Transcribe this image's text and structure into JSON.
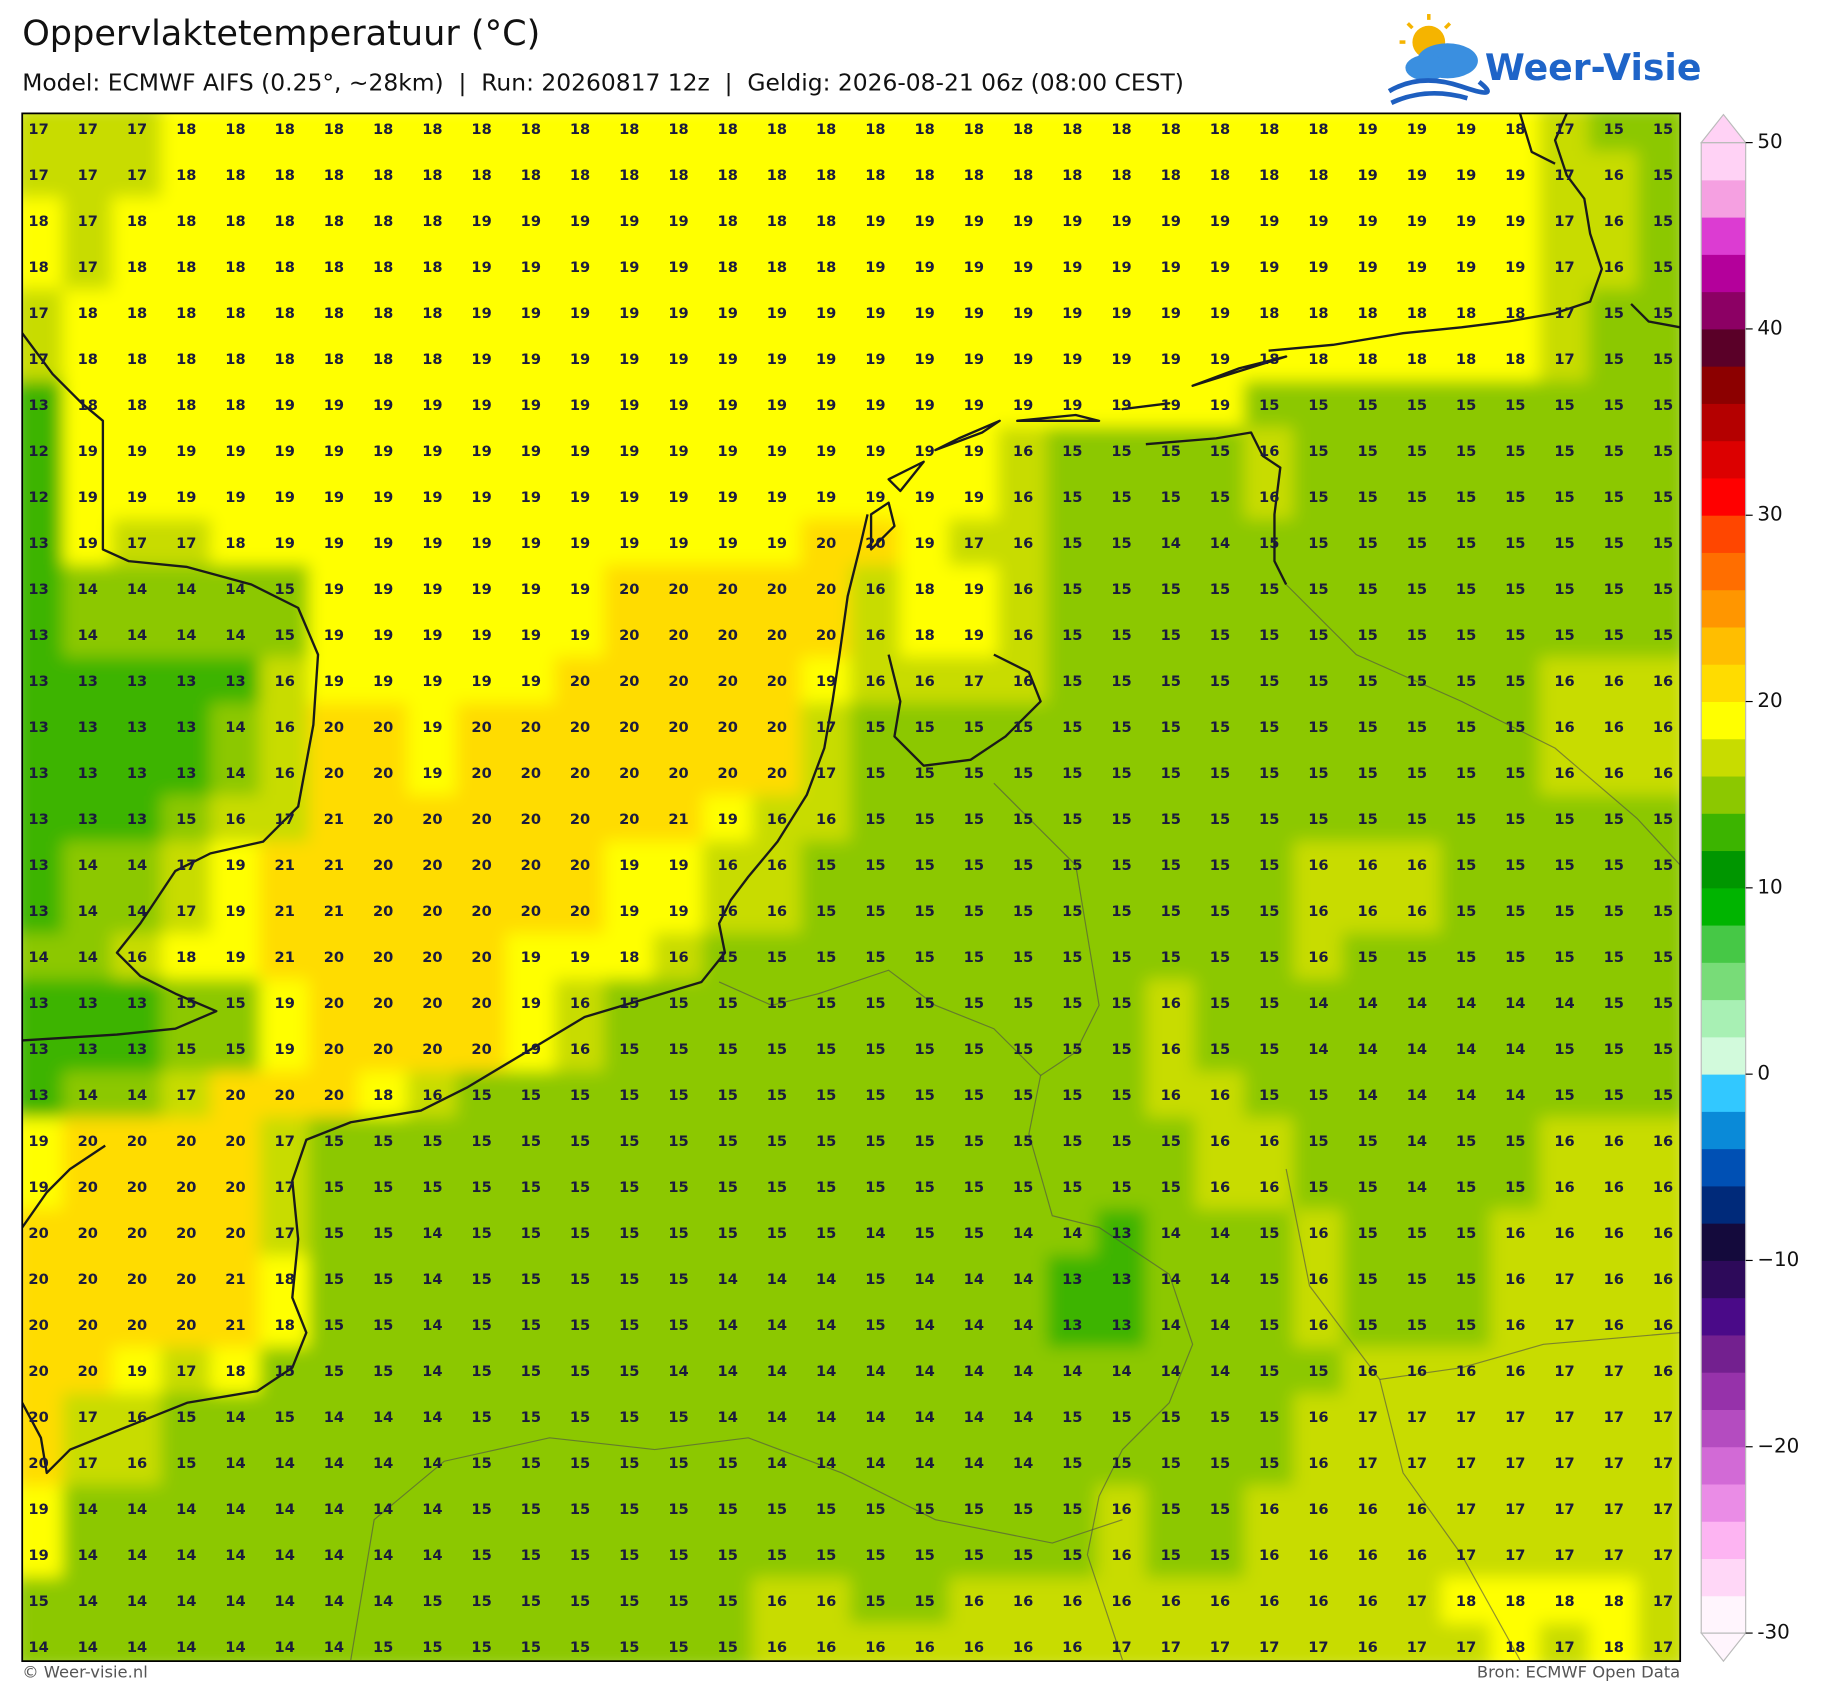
{
  "header": {
    "title": "Oppervlaktetemperatuur (°C)",
    "subtitle": "Model: ECMWF AIFS (0.25°, ~28km)  |  Run: 20260817 12z  |  Geldig: 2026-08-21 06z (08:00 CEST)",
    "logo": "Weer-Visie"
  },
  "chart_data": {
    "type": "grid",
    "values": [
      [
        17,
        17,
        17,
        18,
        18,
        18,
        18,
        18,
        18,
        18,
        18,
        18,
        18,
        18,
        18,
        18,
        18,
        18,
        18,
        18,
        18,
        18,
        18,
        18,
        18,
        18,
        18,
        19,
        19,
        19,
        18,
        17,
        15,
        15
      ],
      [
        17,
        17,
        17,
        18,
        18,
        18,
        18,
        18,
        18,
        18,
        18,
        18,
        18,
        18,
        18,
        18,
        18,
        18,
        18,
        18,
        18,
        18,
        18,
        18,
        18,
        18,
        18,
        19,
        19,
        19,
        19,
        17,
        16,
        15
      ],
      [
        18,
        17,
        18,
        18,
        18,
        18,
        18,
        18,
        18,
        19,
        19,
        19,
        19,
        19,
        18,
        18,
        18,
        19,
        19,
        19,
        19,
        19,
        19,
        19,
        19,
        19,
        19,
        19,
        19,
        19,
        19,
        17,
        16,
        15
      ],
      [
        18,
        17,
        18,
        18,
        18,
        18,
        18,
        18,
        18,
        19,
        19,
        19,
        19,
        19,
        18,
        18,
        18,
        19,
        19,
        19,
        19,
        19,
        19,
        19,
        19,
        19,
        19,
        19,
        19,
        19,
        19,
        17,
        16,
        15
      ],
      [
        17,
        18,
        18,
        18,
        18,
        18,
        18,
        18,
        18,
        19,
        19,
        19,
        19,
        19,
        19,
        19,
        19,
        19,
        19,
        19,
        19,
        19,
        19,
        19,
        19,
        18,
        18,
        18,
        18,
        18,
        18,
        17,
        15,
        15
      ],
      [
        17,
        18,
        18,
        18,
        18,
        18,
        18,
        18,
        18,
        19,
        19,
        19,
        19,
        19,
        19,
        19,
        19,
        19,
        19,
        19,
        19,
        19,
        19,
        19,
        19,
        18,
        18,
        18,
        18,
        18,
        18,
        17,
        15,
        15
      ],
      [
        13,
        18,
        18,
        18,
        18,
        19,
        19,
        19,
        19,
        19,
        19,
        19,
        19,
        19,
        19,
        19,
        19,
        19,
        19,
        19,
        19,
        19,
        19,
        19,
        19,
        15,
        15,
        15,
        15,
        15,
        15,
        15,
        15,
        15
      ],
      [
        12,
        19,
        19,
        19,
        19,
        19,
        19,
        19,
        19,
        19,
        19,
        19,
        19,
        19,
        19,
        19,
        19,
        19,
        19,
        19,
        16,
        15,
        15,
        15,
        15,
        16,
        15,
        15,
        15,
        15,
        15,
        15,
        15,
        15
      ],
      [
        12,
        19,
        19,
        19,
        19,
        19,
        19,
        19,
        19,
        19,
        19,
        19,
        19,
        19,
        19,
        19,
        19,
        19,
        19,
        19,
        16,
        15,
        15,
        15,
        15,
        16,
        15,
        15,
        15,
        15,
        15,
        15,
        15,
        15
      ],
      [
        13,
        19,
        17,
        17,
        18,
        19,
        19,
        19,
        19,
        19,
        19,
        19,
        19,
        19,
        19,
        19,
        20,
        20,
        19,
        17,
        16,
        15,
        15,
        14,
        14,
        15,
        15,
        15,
        15,
        15,
        15,
        15,
        15,
        15
      ],
      [
        13,
        14,
        14,
        14,
        14,
        15,
        19,
        19,
        19,
        19,
        19,
        19,
        20,
        20,
        20,
        20,
        20,
        16,
        18,
        19,
        16,
        15,
        15,
        15,
        15,
        15,
        15,
        15,
        15,
        15,
        15,
        15,
        15,
        15
      ],
      [
        13,
        14,
        14,
        14,
        14,
        15,
        19,
        19,
        19,
        19,
        19,
        19,
        20,
        20,
        20,
        20,
        20,
        16,
        18,
        19,
        16,
        15,
        15,
        15,
        15,
        15,
        15,
        15,
        15,
        15,
        15,
        15,
        15,
        15
      ],
      [
        13,
        13,
        13,
        13,
        13,
        16,
        19,
        19,
        19,
        19,
        19,
        20,
        20,
        20,
        20,
        20,
        19,
        16,
        16,
        17,
        16,
        15,
        15,
        15,
        15,
        15,
        15,
        15,
        15,
        15,
        15,
        16,
        16,
        16
      ],
      [
        13,
        13,
        13,
        13,
        14,
        16,
        20,
        20,
        19,
        20,
        20,
        20,
        20,
        20,
        20,
        20,
        17,
        15,
        15,
        15,
        15,
        15,
        15,
        15,
        15,
        15,
        15,
        15,
        15,
        15,
        15,
        16,
        16,
        16
      ],
      [
        13,
        13,
        13,
        13,
        14,
        16,
        20,
        20,
        19,
        20,
        20,
        20,
        20,
        20,
        20,
        20,
        17,
        15,
        15,
        15,
        15,
        15,
        15,
        15,
        15,
        15,
        15,
        15,
        15,
        15,
        15,
        16,
        16,
        16
      ],
      [
        13,
        13,
        13,
        15,
        16,
        17,
        21,
        20,
        20,
        20,
        20,
        20,
        20,
        21,
        19,
        16,
        16,
        15,
        15,
        15,
        15,
        15,
        15,
        15,
        15,
        15,
        15,
        15,
        15,
        15,
        15,
        15,
        15,
        15
      ],
      [
        13,
        14,
        14,
        17,
        19,
        21,
        21,
        20,
        20,
        20,
        20,
        20,
        19,
        19,
        16,
        16,
        15,
        15,
        15,
        15,
        15,
        15,
        15,
        15,
        15,
        15,
        16,
        16,
        16,
        15,
        15,
        15,
        15,
        15
      ],
      [
        13,
        14,
        14,
        17,
        19,
        21,
        21,
        20,
        20,
        20,
        20,
        20,
        19,
        19,
        16,
        16,
        15,
        15,
        15,
        15,
        15,
        15,
        15,
        15,
        15,
        15,
        16,
        16,
        16,
        15,
        15,
        15,
        15,
        15
      ],
      [
        14,
        14,
        16,
        18,
        19,
        21,
        20,
        20,
        20,
        20,
        19,
        19,
        18,
        16,
        15,
        15,
        15,
        15,
        15,
        15,
        15,
        15,
        15,
        15,
        15,
        15,
        16,
        15,
        15,
        15,
        15,
        15,
        15,
        15
      ],
      [
        13,
        13,
        13,
        15,
        15,
        19,
        20,
        20,
        20,
        20,
        19,
        16,
        15,
        15,
        15,
        15,
        15,
        15,
        15,
        15,
        15,
        15,
        15,
        16,
        15,
        15,
        14,
        14,
        14,
        14,
        14,
        14,
        15,
        15
      ],
      [
        13,
        13,
        13,
        15,
        15,
        19,
        20,
        20,
        20,
        20,
        19,
        16,
        15,
        15,
        15,
        15,
        15,
        15,
        15,
        15,
        15,
        15,
        15,
        16,
        15,
        15,
        14,
        14,
        14,
        14,
        14,
        15,
        15,
        15
      ],
      [
        13,
        14,
        14,
        17,
        20,
        20,
        20,
        18,
        16,
        15,
        15,
        15,
        15,
        15,
        15,
        15,
        15,
        15,
        15,
        15,
        15,
        15,
        15,
        16,
        16,
        15,
        15,
        14,
        14,
        14,
        14,
        15,
        15,
        15
      ],
      [
        19,
        20,
        20,
        20,
        20,
        17,
        15,
        15,
        15,
        15,
        15,
        15,
        15,
        15,
        15,
        15,
        15,
        15,
        15,
        15,
        15,
        15,
        15,
        15,
        16,
        16,
        15,
        15,
        14,
        15,
        15,
        16,
        16,
        16
      ],
      [
        19,
        20,
        20,
        20,
        20,
        17,
        15,
        15,
        15,
        15,
        15,
        15,
        15,
        15,
        15,
        15,
        15,
        15,
        15,
        15,
        15,
        15,
        15,
        15,
        16,
        16,
        15,
        15,
        14,
        15,
        15,
        16,
        16,
        16
      ],
      [
        20,
        20,
        20,
        20,
        20,
        17,
        15,
        15,
        14,
        15,
        15,
        15,
        15,
        15,
        15,
        15,
        15,
        14,
        15,
        15,
        14,
        14,
        13,
        14,
        14,
        15,
        16,
        15,
        15,
        15,
        16,
        16,
        16,
        16
      ],
      [
        20,
        20,
        20,
        20,
        21,
        18,
        15,
        15,
        14,
        15,
        15,
        15,
        15,
        15,
        14,
        14,
        14,
        15,
        14,
        14,
        14,
        13,
        13,
        14,
        14,
        15,
        16,
        15,
        15,
        15,
        16,
        17,
        16,
        16
      ],
      [
        20,
        20,
        20,
        20,
        21,
        18,
        15,
        15,
        14,
        15,
        15,
        15,
        15,
        15,
        14,
        14,
        14,
        15,
        14,
        14,
        14,
        13,
        13,
        14,
        14,
        15,
        16,
        15,
        15,
        15,
        16,
        17,
        16,
        16
      ],
      [
        20,
        20,
        19,
        17,
        18,
        15,
        15,
        15,
        14,
        15,
        15,
        15,
        15,
        14,
        14,
        14,
        14,
        14,
        14,
        14,
        14,
        14,
        14,
        14,
        14,
        15,
        15,
        16,
        16,
        16,
        16,
        17,
        17,
        16
      ],
      [
        20,
        17,
        16,
        15,
        14,
        15,
        14,
        14,
        14,
        15,
        15,
        15,
        15,
        15,
        14,
        14,
        14,
        14,
        14,
        14,
        14,
        15,
        15,
        15,
        15,
        15,
        16,
        17,
        17,
        17,
        17,
        17,
        17,
        17
      ],
      [
        20,
        17,
        16,
        15,
        14,
        14,
        14,
        14,
        14,
        15,
        15,
        15,
        15,
        15,
        15,
        14,
        14,
        14,
        14,
        14,
        14,
        15,
        15,
        15,
        15,
        15,
        16,
        17,
        17,
        17,
        17,
        17,
        17,
        17
      ],
      [
        19,
        14,
        14,
        14,
        14,
        14,
        14,
        14,
        14,
        15,
        15,
        15,
        15,
        15,
        15,
        15,
        15,
        15,
        15,
        15,
        15,
        15,
        16,
        15,
        15,
        16,
        16,
        16,
        16,
        17,
        17,
        17,
        17,
        17
      ],
      [
        19,
        14,
        14,
        14,
        14,
        14,
        14,
        14,
        14,
        15,
        15,
        15,
        15,
        15,
        15,
        15,
        15,
        15,
        15,
        15,
        15,
        15,
        16,
        15,
        15,
        16,
        16,
        16,
        16,
        17,
        17,
        17,
        17,
        17
      ],
      [
        15,
        14,
        14,
        14,
        14,
        14,
        14,
        14,
        15,
        15,
        15,
        15,
        15,
        15,
        15,
        16,
        16,
        15,
        15,
        16,
        16,
        16,
        16,
        16,
        16,
        16,
        16,
        16,
        17,
        18,
        18,
        18,
        18,
        17
      ],
      [
        14,
        14,
        14,
        14,
        14,
        14,
        14,
        15,
        15,
        15,
        15,
        15,
        15,
        15,
        15,
        16,
        16,
        16,
        16,
        16,
        16,
        16,
        17,
        17,
        17,
        17,
        17,
        16,
        17,
        17,
        18,
        17,
        18,
        17
      ]
    ],
    "colorbar": {
      "lim": [
        -30,
        50
      ],
      "ticks": [
        -30,
        {
          "value": -20,
          "label": "−20"
        },
        {
          "value": -10,
          "label": "−10"
        },
        0,
        10,
        20,
        30,
        40,
        50
      ],
      "colors": [
        "#fff5fd",
        "#ffd7f7",
        "#fdb4f2",
        "#ea8ce6",
        "#d26ad6",
        "#b44cc0",
        "#9632aa",
        "#73208f",
        "#4a0a88",
        "#2d0a5a",
        "#140a3c",
        "#002a7a",
        "#0050b4",
        "#0a8ad8",
        "#32c8ff",
        "#d2fadc",
        "#a8f0b4",
        "#78dc78",
        "#46c846",
        "#00b400",
        "#009600",
        "#3cb400",
        "#8cc800",
        "#c8dc00",
        "#ffff00",
        "#ffdc00",
        "#ffbe00",
        "#ff9600",
        "#ff6e00",
        "#ff4600",
        "#ff0000",
        "#dc0000",
        "#b40000",
        "#8c0000",
        "#5a0028",
        "#8c0064",
        "#b4009b",
        "#dc3cd2",
        "#f5a0e1",
        "#ffd2f5"
      ]
    }
  },
  "footer": {
    "left": "© Weer-visie.nl",
    "right": "Bron: ECMWF Open Data"
  }
}
